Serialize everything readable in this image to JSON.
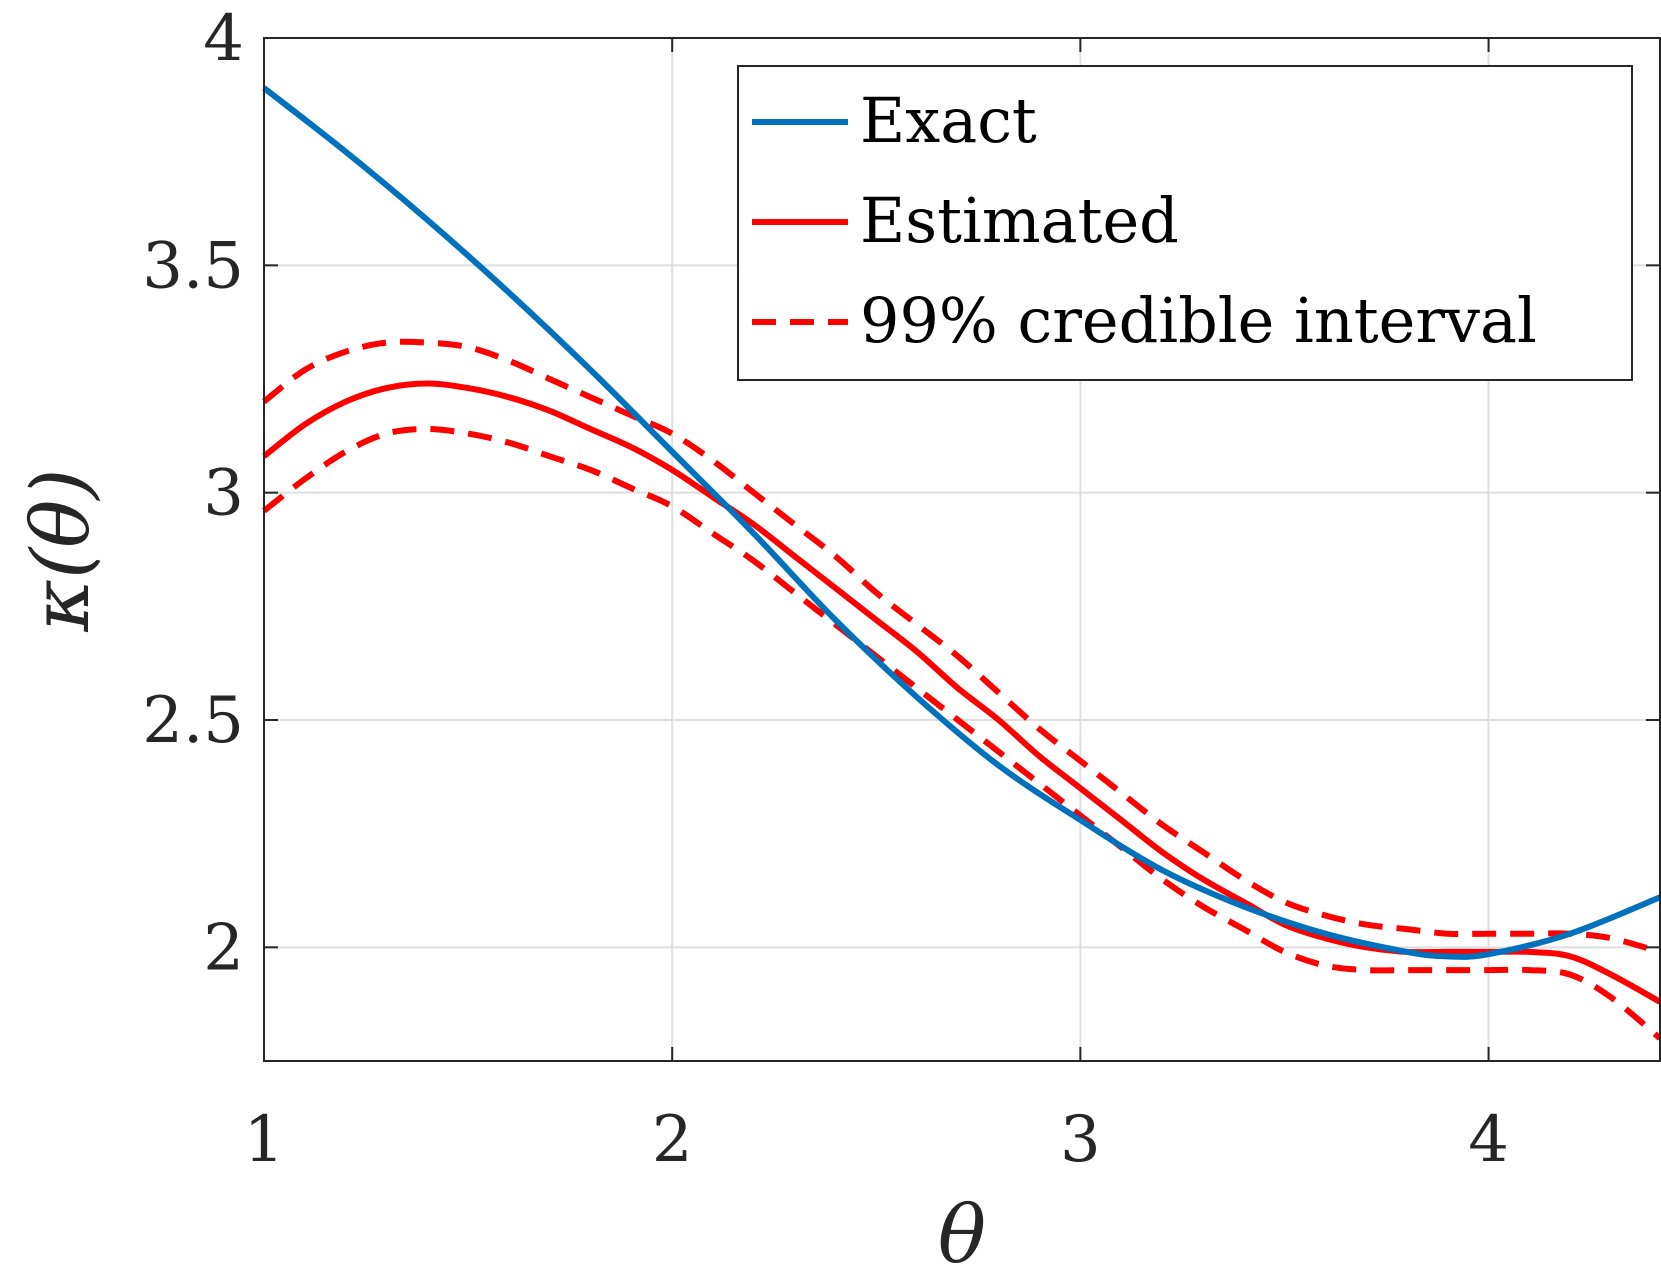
{
  "chart_data": {
    "type": "line",
    "title": "",
    "xlabel": "θ",
    "ylabel": "κ(θ)",
    "xlim": [
      1,
      4.42
    ],
    "ylim": [
      1.75,
      4
    ],
    "grid": true,
    "legend_position": "top-right",
    "x_ticks": [
      "1",
      "2",
      "3",
      "4"
    ],
    "y_ticks": [
      "2",
      "2.5",
      "3",
      "3.5",
      "4"
    ],
    "x_tick_values": [
      1,
      2,
      3,
      4
    ],
    "y_tick_values": [
      2,
      2.5,
      3,
      3.5,
      4
    ],
    "colors": {
      "exact": "#0072BD",
      "estimated": "#FF0000",
      "axis": "#262626",
      "grid": "#dfdfdf"
    },
    "series": [
      {
        "name": "Exact",
        "style": "solid",
        "color": "#0072BD",
        "x": [
          1.0,
          1.2,
          1.4,
          1.6,
          1.8,
          2.0,
          2.2,
          2.4,
          2.6,
          2.8,
          3.0,
          3.2,
          3.4,
          3.6,
          3.8,
          3.9,
          4.0,
          4.2,
          4.42
        ],
        "y": [
          3.89,
          3.75,
          3.6,
          3.44,
          3.27,
          3.09,
          2.91,
          2.72,
          2.55,
          2.4,
          2.28,
          2.17,
          2.09,
          2.03,
          1.99,
          1.98,
          1.985,
          2.03,
          2.11
        ]
      },
      {
        "name": "Estimated",
        "style": "solid",
        "color": "#FF0000",
        "x": [
          1.0,
          1.1,
          1.2,
          1.3,
          1.4,
          1.5,
          1.6,
          1.7,
          1.8,
          1.9,
          2.0,
          2.1,
          2.2,
          2.3,
          2.4,
          2.5,
          2.6,
          2.7,
          2.8,
          2.9,
          3.0,
          3.1,
          3.2,
          3.3,
          3.4,
          3.5,
          3.6,
          3.7,
          3.8,
          3.9,
          4.0,
          4.1,
          4.2,
          4.3,
          4.42
        ],
        "y": [
          3.08,
          3.15,
          3.2,
          3.23,
          3.24,
          3.23,
          3.21,
          3.18,
          3.14,
          3.1,
          3.05,
          2.99,
          2.93,
          2.86,
          2.79,
          2.72,
          2.65,
          2.57,
          2.5,
          2.42,
          2.35,
          2.28,
          2.21,
          2.15,
          2.1,
          2.05,
          2.02,
          2.0,
          1.99,
          1.99,
          1.99,
          1.99,
          1.98,
          1.94,
          1.88
        ]
      },
      {
        "name": "99% credible interval",
        "style": "dashed",
        "color": "#FF0000",
        "x": [
          1.0,
          1.1,
          1.2,
          1.3,
          1.4,
          1.5,
          1.6,
          1.7,
          1.8,
          1.9,
          2.0,
          2.1,
          2.2,
          2.3,
          2.4,
          2.5,
          2.6,
          2.7,
          2.8,
          2.9,
          3.0,
          3.1,
          3.2,
          3.3,
          3.4,
          3.5,
          3.6,
          3.7,
          3.8,
          3.9,
          4.0,
          4.1,
          4.2,
          4.3,
          4.42
        ],
        "y": [
          3.2,
          3.27,
          3.31,
          3.33,
          3.33,
          3.32,
          3.29,
          3.25,
          3.21,
          3.17,
          3.13,
          3.07,
          3.0,
          2.93,
          2.86,
          2.78,
          2.71,
          2.64,
          2.56,
          2.48,
          2.41,
          2.34,
          2.27,
          2.21,
          2.15,
          2.1,
          2.07,
          2.05,
          2.04,
          2.03,
          2.03,
          2.03,
          2.03,
          2.02,
          1.99
        ]
      },
      {
        "name": "",
        "style": "dashed",
        "color": "#FF0000",
        "x": [
          1.0,
          1.1,
          1.2,
          1.3,
          1.4,
          1.5,
          1.6,
          1.7,
          1.8,
          1.9,
          2.0,
          2.1,
          2.2,
          2.3,
          2.4,
          2.5,
          2.6,
          2.7,
          2.8,
          2.9,
          3.0,
          3.1,
          3.2,
          3.3,
          3.4,
          3.5,
          3.6,
          3.7,
          3.8,
          3.9,
          4.0,
          4.1,
          4.2,
          4.3,
          4.42
        ],
        "y": [
          2.96,
          3.03,
          3.09,
          3.13,
          3.14,
          3.13,
          3.11,
          3.08,
          3.05,
          3.01,
          2.97,
          2.91,
          2.85,
          2.78,
          2.71,
          2.64,
          2.57,
          2.5,
          2.43,
          2.36,
          2.29,
          2.22,
          2.15,
          2.09,
          2.04,
          1.99,
          1.96,
          1.95,
          1.95,
          1.95,
          1.95,
          1.95,
          1.94,
          1.89,
          1.8
        ]
      }
    ]
  }
}
